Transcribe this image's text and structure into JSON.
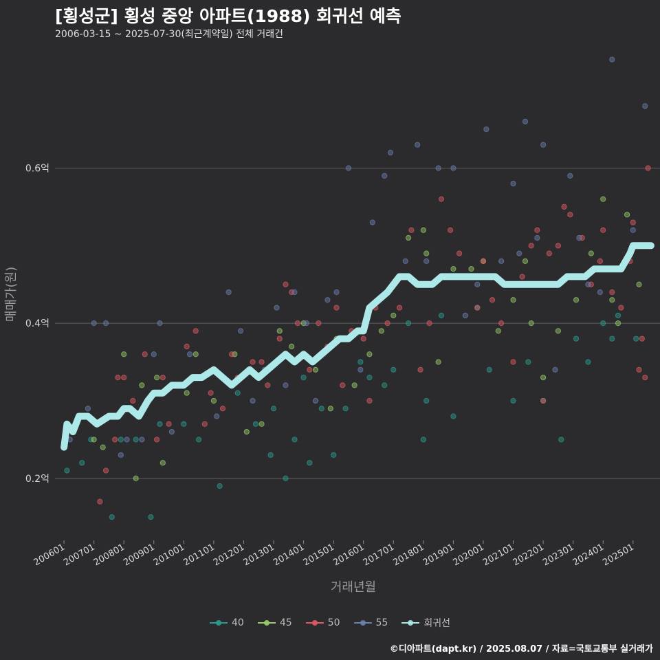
{
  "title": "[횡성군] 횡성 중앙 아파트(1988) 회귀선 예측",
  "subtitle": "2006-03-15 ~ 2025-07-30(최근계약일) 전체 거래건",
  "footer": "©디아파트(dapt.kr) / 2025.08.07 / 자료=국토교통부 실거래가",
  "legend": [
    {
      "label": "40",
      "color": "#2a9d8f"
    },
    {
      "label": "45",
      "color": "#9acd6a"
    },
    {
      "label": "50",
      "color": "#e05a63"
    },
    {
      "label": "55",
      "color": "#6b7fb0"
    },
    {
      "label": "회귀선",
      "color": "#aee9ea"
    }
  ],
  "chart_data": {
    "type": "scatter",
    "xlabel": "거래년월",
    "ylabel": "매매가(원)",
    "xlim": [
      2005.7,
      2025.9
    ],
    "ylim": [
      0.12,
      0.76
    ],
    "yticks": [
      0.2,
      0.4,
      0.6
    ],
    "ytick_labels": [
      "0.2억",
      "0.4억",
      "0.6억"
    ],
    "xticks": [
      2006,
      2007,
      2008,
      2009,
      2010,
      2011,
      2012,
      2013,
      2014,
      2015,
      2016,
      2017,
      2018,
      2019,
      2020,
      2021,
      2022,
      2023,
      2024,
      2025
    ],
    "xtick_labels": [
      "200601",
      "200701",
      "200801",
      "200901",
      "201001",
      "201101",
      "201201",
      "201301",
      "201401",
      "201501",
      "201601",
      "201701",
      "201801",
      "201901",
      "202001",
      "202101",
      "202201",
      "202301",
      "202401",
      "202501"
    ],
    "series": [
      {
        "name": "40",
        "color": "#2a9d8f",
        "points": [
          [
            2006.1,
            0.21
          ],
          [
            2006.6,
            0.22
          ],
          [
            2006.9,
            0.25
          ],
          [
            2007.6,
            0.15
          ],
          [
            2007.9,
            0.25
          ],
          [
            2008.4,
            0.25
          ],
          [
            2008.9,
            0.15
          ],
          [
            2009.2,
            0.27
          ],
          [
            2010.0,
            0.27
          ],
          [
            2010.5,
            0.25
          ],
          [
            2011.2,
            0.19
          ],
          [
            2011.8,
            0.31
          ],
          [
            2012.4,
            0.27
          ],
          [
            2012.9,
            0.23
          ],
          [
            2013.0,
            0.29
          ],
          [
            2013.4,
            0.2
          ],
          [
            2013.7,
            0.25
          ],
          [
            2014.0,
            0.33
          ],
          [
            2014.2,
            0.22
          ],
          [
            2014.6,
            0.29
          ],
          [
            2015.0,
            0.23
          ],
          [
            2015.4,
            0.29
          ],
          [
            2015.9,
            0.35
          ],
          [
            2016.2,
            0.33
          ],
          [
            2016.7,
            0.32
          ],
          [
            2017.0,
            0.34
          ],
          [
            2017.5,
            0.4
          ],
          [
            2018.0,
            0.25
          ],
          [
            2018.1,
            0.3
          ],
          [
            2018.6,
            0.41
          ],
          [
            2019.0,
            0.28
          ],
          [
            2019.8,
            0.42
          ],
          [
            2020.2,
            0.34
          ],
          [
            2021.0,
            0.3
          ],
          [
            2021.5,
            0.35
          ],
          [
            2022.0,
            0.3
          ],
          [
            2022.6,
            0.25
          ],
          [
            2023.1,
            0.38
          ],
          [
            2023.5,
            0.35
          ],
          [
            2024.0,
            0.4
          ],
          [
            2024.3,
            0.38
          ],
          [
            2024.5,
            0.41
          ],
          [
            2025.1,
            0.38
          ]
        ]
      },
      {
        "name": "45",
        "color": "#9acd6a",
        "points": [
          [
            2007.0,
            0.25
          ],
          [
            2007.3,
            0.24
          ],
          [
            2008.0,
            0.36
          ],
          [
            2008.4,
            0.2
          ],
          [
            2008.6,
            0.32
          ],
          [
            2009.1,
            0.33
          ],
          [
            2009.3,
            0.22
          ],
          [
            2010.1,
            0.31
          ],
          [
            2010.4,
            0.36
          ],
          [
            2011.0,
            0.3
          ],
          [
            2011.7,
            0.36
          ],
          [
            2012.1,
            0.26
          ],
          [
            2012.6,
            0.27
          ],
          [
            2013.2,
            0.39
          ],
          [
            2013.6,
            0.37
          ],
          [
            2014.0,
            0.4
          ],
          [
            2014.4,
            0.34
          ],
          [
            2014.9,
            0.29
          ],
          [
            2015.1,
            0.38
          ],
          [
            2015.7,
            0.32
          ],
          [
            2016.2,
            0.36
          ],
          [
            2016.6,
            0.39
          ],
          [
            2017.0,
            0.41
          ],
          [
            2017.5,
            0.51
          ],
          [
            2018.0,
            0.52
          ],
          [
            2018.1,
            0.49
          ],
          [
            2018.5,
            0.35
          ],
          [
            2019.0,
            0.47
          ],
          [
            2019.6,
            0.47
          ],
          [
            2020.0,
            0.48
          ],
          [
            2020.5,
            0.39
          ],
          [
            2021.0,
            0.43
          ],
          [
            2021.4,
            0.48
          ],
          [
            2021.6,
            0.4
          ],
          [
            2022.0,
            0.33
          ],
          [
            2022.5,
            0.39
          ],
          [
            2023.1,
            0.43
          ],
          [
            2023.6,
            0.49
          ],
          [
            2024.0,
            0.56
          ],
          [
            2024.3,
            0.43
          ],
          [
            2024.5,
            0.4
          ],
          [
            2024.8,
            0.54
          ],
          [
            2025.2,
            0.45
          ]
        ]
      },
      {
        "name": "50",
        "color": "#e05a63",
        "points": [
          [
            2007.2,
            0.17
          ],
          [
            2007.4,
            0.21
          ],
          [
            2007.7,
            0.25
          ],
          [
            2007.8,
            0.33
          ],
          [
            2008.0,
            0.33
          ],
          [
            2008.3,
            0.3
          ],
          [
            2008.7,
            0.36
          ],
          [
            2009.1,
            0.25
          ],
          [
            2009.3,
            0.33
          ],
          [
            2009.5,
            0.27
          ],
          [
            2010.1,
            0.37
          ],
          [
            2010.4,
            0.39
          ],
          [
            2010.7,
            0.27
          ],
          [
            2010.9,
            0.31
          ],
          [
            2011.3,
            0.29
          ],
          [
            2011.6,
            0.36
          ],
          [
            2011.8,
            0.33
          ],
          [
            2012.3,
            0.35
          ],
          [
            2012.6,
            0.35
          ],
          [
            2012.8,
            0.32
          ],
          [
            2013.2,
            0.38
          ],
          [
            2013.4,
            0.45
          ],
          [
            2013.6,
            0.44
          ],
          [
            2013.8,
            0.4
          ],
          [
            2014.2,
            0.34
          ],
          [
            2014.5,
            0.4
          ],
          [
            2014.8,
            0.37
          ],
          [
            2015.1,
            0.42
          ],
          [
            2015.3,
            0.32
          ],
          [
            2015.6,
            0.39
          ],
          [
            2016.0,
            0.38
          ],
          [
            2016.2,
            0.3
          ],
          [
            2016.4,
            0.42
          ],
          [
            2016.8,
            0.4
          ],
          [
            2017.2,
            0.42
          ],
          [
            2017.6,
            0.52
          ],
          [
            2017.9,
            0.34
          ],
          [
            2018.2,
            0.4
          ],
          [
            2018.6,
            0.56
          ],
          [
            2018.9,
            0.52
          ],
          [
            2019.2,
            0.49
          ],
          [
            2019.5,
            0.46
          ],
          [
            2019.8,
            0.42
          ],
          [
            2020.0,
            0.48
          ],
          [
            2020.3,
            0.43
          ],
          [
            2020.6,
            0.4
          ],
          [
            2021.0,
            0.35
          ],
          [
            2021.3,
            0.46
          ],
          [
            2021.6,
            0.5
          ],
          [
            2021.8,
            0.52
          ],
          [
            2022.0,
            0.3
          ],
          [
            2022.2,
            0.49
          ],
          [
            2022.5,
            0.5
          ],
          [
            2022.7,
            0.55
          ],
          [
            2022.9,
            0.54
          ],
          [
            2023.3,
            0.51
          ],
          [
            2023.6,
            0.45
          ],
          [
            2023.9,
            0.48
          ],
          [
            2024.0,
            0.52
          ],
          [
            2024.3,
            0.44
          ],
          [
            2024.6,
            0.42
          ],
          [
            2024.9,
            0.48
          ],
          [
            2025.0,
            0.53
          ],
          [
            2025.2,
            0.34
          ],
          [
            2025.3,
            0.38
          ],
          [
            2025.4,
            0.33
          ],
          [
            2025.5,
            0.6
          ]
        ]
      },
      {
        "name": "55",
        "color": "#6b7fb0",
        "points": [
          [
            2006.2,
            0.25
          ],
          [
            2006.8,
            0.29
          ],
          [
            2007.0,
            0.4
          ],
          [
            2007.4,
            0.4
          ],
          [
            2007.9,
            0.23
          ],
          [
            2008.1,
            0.25
          ],
          [
            2008.6,
            0.25
          ],
          [
            2009.0,
            0.36
          ],
          [
            2009.2,
            0.4
          ],
          [
            2009.6,
            0.26
          ],
          [
            2010.2,
            0.36
          ],
          [
            2010.6,
            0.33
          ],
          [
            2011.1,
            0.28
          ],
          [
            2011.5,
            0.44
          ],
          [
            2011.9,
            0.39
          ],
          [
            2012.3,
            0.3
          ],
          [
            2012.7,
            0.34
          ],
          [
            2013.1,
            0.42
          ],
          [
            2013.4,
            0.32
          ],
          [
            2013.7,
            0.44
          ],
          [
            2014.1,
            0.4
          ],
          [
            2014.4,
            0.3
          ],
          [
            2014.8,
            0.43
          ],
          [
            2015.1,
            0.44
          ],
          [
            2015.5,
            0.6
          ],
          [
            2015.9,
            0.34
          ],
          [
            2016.3,
            0.53
          ],
          [
            2016.7,
            0.59
          ],
          [
            2016.9,
            0.62
          ],
          [
            2017.4,
            0.48
          ],
          [
            2017.8,
            0.63
          ],
          [
            2018.1,
            0.48
          ],
          [
            2018.5,
            0.6
          ],
          [
            2019.0,
            0.6
          ],
          [
            2019.4,
            0.41
          ],
          [
            2019.8,
            0.45
          ],
          [
            2020.1,
            0.65
          ],
          [
            2020.6,
            0.48
          ],
          [
            2021.0,
            0.58
          ],
          [
            2021.2,
            0.49
          ],
          [
            2021.4,
            0.66
          ],
          [
            2021.8,
            0.51
          ],
          [
            2022.0,
            0.63
          ],
          [
            2022.4,
            0.34
          ],
          [
            2022.9,
            0.59
          ],
          [
            2023.2,
            0.51
          ],
          [
            2023.5,
            0.45
          ],
          [
            2023.9,
            0.44
          ],
          [
            2024.3,
            0.74
          ],
          [
            2024.6,
            0.47
          ],
          [
            2025.0,
            0.52
          ],
          [
            2025.4,
            0.68
          ]
        ]
      },
      {
        "name": "회귀선",
        "color": "#aee9ea",
        "type": "line",
        "points": [
          [
            2006.0,
            0.24
          ],
          [
            2006.1,
            0.27
          ],
          [
            2006.3,
            0.26
          ],
          [
            2006.5,
            0.28
          ],
          [
            2006.8,
            0.28
          ],
          [
            2007.1,
            0.27
          ],
          [
            2007.5,
            0.28
          ],
          [
            2007.8,
            0.28
          ],
          [
            2008.0,
            0.29
          ],
          [
            2008.2,
            0.29
          ],
          [
            2008.5,
            0.28
          ],
          [
            2008.8,
            0.3
          ],
          [
            2009.0,
            0.31
          ],
          [
            2009.3,
            0.31
          ],
          [
            2009.6,
            0.32
          ],
          [
            2010.0,
            0.32
          ],
          [
            2010.3,
            0.33
          ],
          [
            2010.6,
            0.33
          ],
          [
            2011.0,
            0.34
          ],
          [
            2011.3,
            0.33
          ],
          [
            2011.6,
            0.32
          ],
          [
            2011.9,
            0.33
          ],
          [
            2012.2,
            0.34
          ],
          [
            2012.5,
            0.33
          ],
          [
            2012.8,
            0.34
          ],
          [
            2013.1,
            0.35
          ],
          [
            2013.4,
            0.36
          ],
          [
            2013.7,
            0.35
          ],
          [
            2014.0,
            0.36
          ],
          [
            2014.3,
            0.35
          ],
          [
            2014.6,
            0.36
          ],
          [
            2014.9,
            0.37
          ],
          [
            2015.2,
            0.38
          ],
          [
            2015.5,
            0.38
          ],
          [
            2015.8,
            0.39
          ],
          [
            2016.0,
            0.39
          ],
          [
            2016.2,
            0.42
          ],
          [
            2016.5,
            0.43
          ],
          [
            2016.8,
            0.44
          ],
          [
            2017.0,
            0.45
          ],
          [
            2017.2,
            0.46
          ],
          [
            2017.5,
            0.46
          ],
          [
            2017.8,
            0.45
          ],
          [
            2018.0,
            0.45
          ],
          [
            2018.3,
            0.45
          ],
          [
            2018.6,
            0.46
          ],
          [
            2018.9,
            0.46
          ],
          [
            2019.2,
            0.46
          ],
          [
            2019.5,
            0.46
          ],
          [
            2019.8,
            0.46
          ],
          [
            2020.1,
            0.46
          ],
          [
            2020.4,
            0.46
          ],
          [
            2020.7,
            0.45
          ],
          [
            2021.0,
            0.45
          ],
          [
            2021.3,
            0.45
          ],
          [
            2021.6,
            0.45
          ],
          [
            2021.9,
            0.45
          ],
          [
            2022.2,
            0.45
          ],
          [
            2022.5,
            0.45
          ],
          [
            2022.8,
            0.46
          ],
          [
            2023.1,
            0.46
          ],
          [
            2023.4,
            0.46
          ],
          [
            2023.7,
            0.47
          ],
          [
            2024.0,
            0.47
          ],
          [
            2024.3,
            0.47
          ],
          [
            2024.6,
            0.47
          ],
          [
            2024.9,
            0.49
          ],
          [
            2025.0,
            0.5
          ],
          [
            2025.2,
            0.5
          ],
          [
            2025.5,
            0.5
          ],
          [
            2025.6,
            0.5
          ]
        ]
      }
    ]
  }
}
